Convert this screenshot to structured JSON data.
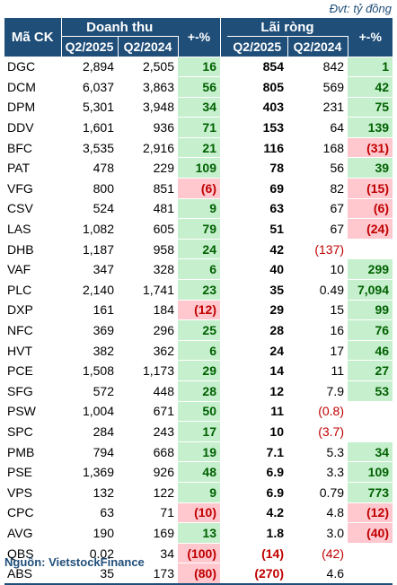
{
  "unit_note": "Đvt: tỷ đồng",
  "header": {
    "code": "Mã CK",
    "revenue": "Doanh thu",
    "profit": "Lãi ròng",
    "q2025": "Q2/2025",
    "q2024": "Q2/2024",
    "change": "+-%"
  },
  "rows": [
    {
      "code": "DGC",
      "rev25": "2,894",
      "rev24": "2,505",
      "rev_chg": "16",
      "rev_dir": "pos",
      "prof25": "854",
      "prof24": "842",
      "prof24_neg": false,
      "prof_chg": "1",
      "prof_dir": "pos"
    },
    {
      "code": "DCM",
      "rev25": "6,037",
      "rev24": "3,863",
      "rev_chg": "56",
      "rev_dir": "pos",
      "prof25": "805",
      "prof24": "569",
      "prof24_neg": false,
      "prof_chg": "42",
      "prof_dir": "pos"
    },
    {
      "code": "DPM",
      "rev25": "5,301",
      "rev24": "3,948",
      "rev_chg": "34",
      "rev_dir": "pos",
      "prof25": "403",
      "prof24": "231",
      "prof24_neg": false,
      "prof_chg": "75",
      "prof_dir": "pos"
    },
    {
      "code": "DDV",
      "rev25": "1,601",
      "rev24": "936",
      "rev_chg": "71",
      "rev_dir": "pos",
      "prof25": "153",
      "prof24": "64",
      "prof24_neg": false,
      "prof_chg": "139",
      "prof_dir": "pos"
    },
    {
      "code": "BFC",
      "rev25": "3,535",
      "rev24": "2,916",
      "rev_chg": "21",
      "rev_dir": "pos",
      "prof25": "116",
      "prof24": "168",
      "prof24_neg": false,
      "prof_chg": "(31)",
      "prof_dir": "neg"
    },
    {
      "code": "PAT",
      "rev25": "478",
      "rev24": "229",
      "rev_chg": "109",
      "rev_dir": "pos",
      "prof25": "78",
      "prof24": "56",
      "prof24_neg": false,
      "prof_chg": "39",
      "prof_dir": "pos"
    },
    {
      "code": "VFG",
      "rev25": "800",
      "rev24": "851",
      "rev_chg": "(6)",
      "rev_dir": "neg",
      "prof25": "69",
      "prof24": "82",
      "prof24_neg": false,
      "prof_chg": "(15)",
      "prof_dir": "neg"
    },
    {
      "code": "CSV",
      "rev25": "524",
      "rev24": "481",
      "rev_chg": "9",
      "rev_dir": "pos",
      "prof25": "63",
      "prof24": "67",
      "prof24_neg": false,
      "prof_chg": "(6)",
      "prof_dir": "neg"
    },
    {
      "code": "LAS",
      "rev25": "1,082",
      "rev24": "605",
      "rev_chg": "79",
      "rev_dir": "pos",
      "prof25": "51",
      "prof24": "67",
      "prof24_neg": false,
      "prof_chg": "(24)",
      "prof_dir": "neg"
    },
    {
      "code": "DHB",
      "rev25": "1,187",
      "rev24": "958",
      "rev_chg": "24",
      "rev_dir": "pos",
      "prof25": "42",
      "prof24": "(137)",
      "prof24_neg": true,
      "prof_chg": "",
      "prof_dir": "none"
    },
    {
      "code": "VAF",
      "rev25": "347",
      "rev24": "328",
      "rev_chg": "6",
      "rev_dir": "pos",
      "prof25": "40",
      "prof24": "10",
      "prof24_neg": false,
      "prof_chg": "299",
      "prof_dir": "pos"
    },
    {
      "code": "PLC",
      "rev25": "2,140",
      "rev24": "1,741",
      "rev_chg": "23",
      "rev_dir": "pos",
      "prof25": "35",
      "prof24": "0.49",
      "prof24_neg": false,
      "prof_chg": "7,094",
      "prof_dir": "pos"
    },
    {
      "code": "DXP",
      "rev25": "161",
      "rev24": "184",
      "rev_chg": "(12)",
      "rev_dir": "neg",
      "prof25": "29",
      "prof24": "15",
      "prof24_neg": false,
      "prof_chg": "99",
      "prof_dir": "pos"
    },
    {
      "code": "NFC",
      "rev25": "369",
      "rev24": "296",
      "rev_chg": "25",
      "rev_dir": "pos",
      "prof25": "28",
      "prof24": "16",
      "prof24_neg": false,
      "prof_chg": "76",
      "prof_dir": "pos"
    },
    {
      "code": "HVT",
      "rev25": "382",
      "rev24": "362",
      "rev_chg": "6",
      "rev_dir": "pos",
      "prof25": "24",
      "prof24": "17",
      "prof24_neg": false,
      "prof_chg": "46",
      "prof_dir": "pos"
    },
    {
      "code": "PCE",
      "rev25": "1,508",
      "rev24": "1,173",
      "rev_chg": "29",
      "rev_dir": "pos",
      "prof25": "14",
      "prof24": "11",
      "prof24_neg": false,
      "prof_chg": "27",
      "prof_dir": "pos"
    },
    {
      "code": "SFG",
      "rev25": "572",
      "rev24": "448",
      "rev_chg": "28",
      "rev_dir": "pos",
      "prof25": "12",
      "prof24": "7.9",
      "prof24_neg": false,
      "prof_chg": "53",
      "prof_dir": "pos"
    },
    {
      "code": "PSW",
      "rev25": "1,004",
      "rev24": "671",
      "rev_chg": "50",
      "rev_dir": "pos",
      "prof25": "11",
      "prof24": "(0.8)",
      "prof24_neg": true,
      "prof_chg": "",
      "prof_dir": "none"
    },
    {
      "code": "SPC",
      "rev25": "284",
      "rev24": "243",
      "rev_chg": "17",
      "rev_dir": "pos",
      "prof25": "10",
      "prof24": "(3.7)",
      "prof24_neg": true,
      "prof_chg": "",
      "prof_dir": "none"
    },
    {
      "code": "PMB",
      "rev25": "794",
      "rev24": "668",
      "rev_chg": "19",
      "rev_dir": "pos",
      "prof25": "7.1",
      "prof24": "5.3",
      "prof24_neg": false,
      "prof_chg": "34",
      "prof_dir": "pos"
    },
    {
      "code": "PSE",
      "rev25": "1,369",
      "rev24": "926",
      "rev_chg": "48",
      "rev_dir": "pos",
      "prof25": "6.9",
      "prof24": "3.3",
      "prof24_neg": false,
      "prof_chg": "109",
      "prof_dir": "pos"
    },
    {
      "code": "VPS",
      "rev25": "132",
      "rev24": "122",
      "rev_chg": "9",
      "rev_dir": "pos",
      "prof25": "6.9",
      "prof24": "0.79",
      "prof24_neg": false,
      "prof_chg": "773",
      "prof_dir": "pos"
    },
    {
      "code": "CPC",
      "rev25": "63",
      "rev24": "71",
      "rev_chg": "(10)",
      "rev_dir": "neg",
      "prof25": "4.2",
      "prof24": "4.8",
      "prof24_neg": false,
      "prof_chg": "(12)",
      "prof_dir": "neg"
    },
    {
      "code": "AVG",
      "rev25": "190",
      "rev24": "169",
      "rev_chg": "13",
      "rev_dir": "pos",
      "prof25": "1.8",
      "prof24": "3.0",
      "prof24_neg": false,
      "prof_chg": "(40)",
      "prof_dir": "neg"
    },
    {
      "code": "QBS",
      "rev25": "0.02",
      "rev24": "34",
      "rev_chg": "(100)",
      "rev_dir": "neg",
      "prof25": "(14)",
      "prof25_neg": true,
      "prof24": "(42)",
      "prof24_neg": true,
      "prof_chg": "",
      "prof_dir": "none"
    },
    {
      "code": "ABS",
      "rev25": "35",
      "rev24": "173",
      "rev_chg": "(80)",
      "rev_dir": "neg",
      "prof25": "(270)",
      "prof25_neg": true,
      "prof24": "4.6",
      "prof24_neg": false,
      "prof_chg": "",
      "prof_dir": "none"
    }
  ],
  "source": "Nguồn: VietstockFinance",
  "colors": {
    "header_bg": "#1f4e79",
    "positive_bg": "#c6efce",
    "positive_text": "#006100",
    "negative_bg": "#ffc7ce",
    "negative_text": "#c00000"
  }
}
